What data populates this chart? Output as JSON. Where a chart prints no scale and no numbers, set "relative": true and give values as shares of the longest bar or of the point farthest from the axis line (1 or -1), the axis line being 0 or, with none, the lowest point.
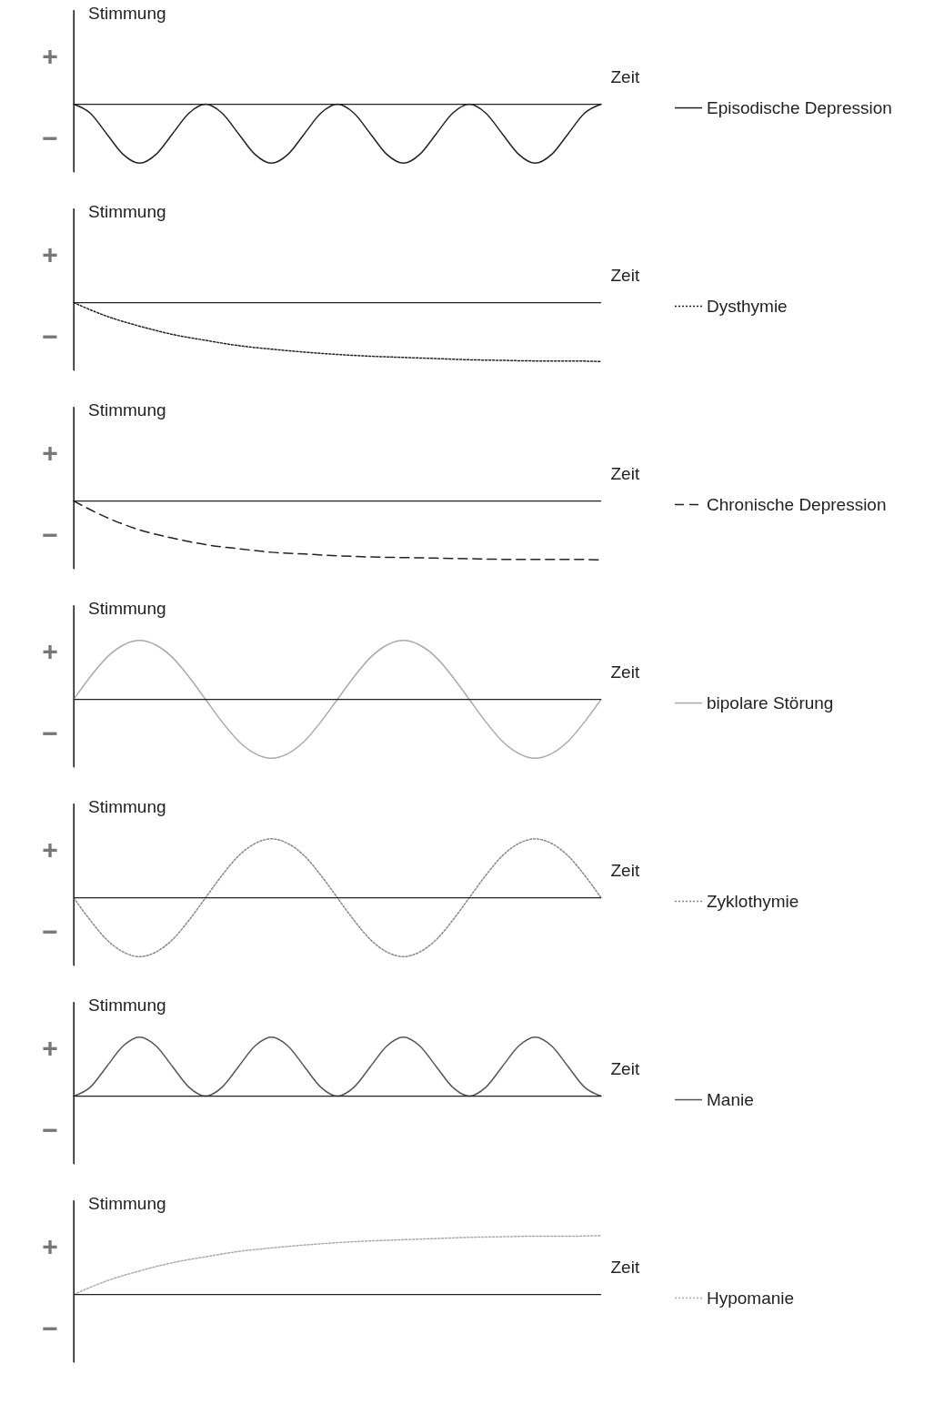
{
  "chart_data": [
    {
      "type": "line",
      "relative": true,
      "xlabel": "Zeit",
      "ylabel": "Stimmung",
      "annotations": [
        "+",
        "−"
      ],
      "legend": "right",
      "line_style": "solid",
      "categories": [
        null,
        null,
        null,
        null,
        null,
        null,
        null,
        null,
        null,
        null,
        null,
        null,
        null,
        null,
        null,
        null,
        null,
        null,
        null,
        null,
        null,
        null,
        null,
        null,
        null,
        null,
        null,
        null,
        null,
        null,
        null,
        null,
        null
      ],
      "series": [
        {
          "name": "Episodische Depression",
          "color": "#222222",
          "values": [
            0,
            -0.15,
            -0.5,
            -0.85,
            -1,
            -0.85,
            -0.5,
            -0.15,
            0,
            -0.15,
            -0.5,
            -0.85,
            -1,
            -0.85,
            -0.5,
            -0.15,
            0,
            -0.15,
            -0.5,
            -0.85,
            -1,
            -0.85,
            -0.5,
            -0.15,
            0,
            -0.15,
            -0.5,
            -0.85,
            -1,
            -0.85,
            -0.5,
            -0.15,
            0
          ]
        }
      ]
    },
    {
      "type": "line",
      "relative": true,
      "xlabel": "Zeit",
      "ylabel": "Stimmung",
      "annotations": [
        "+",
        "−"
      ],
      "legend": "right",
      "line_style": "dotted",
      "categories": [
        null,
        null,
        null,
        null,
        null,
        null,
        null,
        null,
        null,
        null,
        null,
        null,
        null,
        null,
        null,
        null,
        null
      ],
      "series": [
        {
          "name": "Dysthymie",
          "color": "#222222",
          "values": [
            0,
            -0.23,
            -0.4,
            -0.54,
            -0.64,
            -0.73,
            -0.79,
            -0.84,
            -0.88,
            -0.91,
            -0.93,
            -0.95,
            -0.97,
            -0.98,
            -0.99,
            -0.99,
            -1
          ]
        }
      ]
    },
    {
      "type": "line",
      "relative": true,
      "xlabel": "Zeit",
      "ylabel": "Stimmung",
      "annotations": [
        "+",
        "−"
      ],
      "legend": "right",
      "line_style": "dashed",
      "categories": [
        null,
        null,
        null,
        null,
        null,
        null,
        null,
        null,
        null,
        null,
        null,
        null,
        null,
        null,
        null,
        null,
        null
      ],
      "series": [
        {
          "name": "Chronische Depression",
          "color": "#222222",
          "values": [
            0,
            -0.28,
            -0.49,
            -0.63,
            -0.74,
            -0.81,
            -0.87,
            -0.9,
            -0.93,
            -0.95,
            -0.96,
            -0.97,
            -0.98,
            -0.99,
            -0.99,
            -0.99,
            -1
          ]
        }
      ]
    },
    {
      "type": "line",
      "relative": true,
      "xlabel": "Zeit",
      "ylabel": "Stimmung",
      "annotations": [
        "+",
        "−"
      ],
      "legend": "right",
      "line_style": "solid",
      "categories": [
        null,
        null,
        null,
        null,
        null,
        null,
        null,
        null,
        null,
        null,
        null,
        null,
        null,
        null,
        null,
        null,
        null,
        null,
        null,
        null,
        null,
        null,
        null,
        null,
        null,
        null,
        null,
        null,
        null,
        null,
        null,
        null,
        null
      ],
      "series": [
        {
          "name": "bipolare Störung",
          "color": "#aaaaaa",
          "values": [
            0,
            0.38,
            0.71,
            0.92,
            1,
            0.92,
            0.71,
            0.38,
            0,
            -0.38,
            -0.71,
            -0.92,
            -1,
            -0.92,
            -0.71,
            -0.38,
            0,
            0.38,
            0.71,
            0.92,
            1,
            0.92,
            0.71,
            0.38,
            0,
            -0.38,
            -0.71,
            -0.92,
            -1,
            -0.92,
            -0.71,
            -0.38,
            0
          ]
        }
      ]
    },
    {
      "type": "line",
      "relative": true,
      "xlabel": "Zeit",
      "ylabel": "Stimmung",
      "annotations": [
        "+",
        "−"
      ],
      "legend": "right",
      "line_style": "dotted",
      "categories": [
        null,
        null,
        null,
        null,
        null,
        null,
        null,
        null,
        null,
        null,
        null,
        null,
        null,
        null,
        null,
        null,
        null,
        null,
        null,
        null,
        null,
        null,
        null,
        null,
        null,
        null,
        null,
        null,
        null,
        null,
        null,
        null,
        null
      ],
      "series": [
        {
          "name": "Zyklothymie",
          "color": "#888888",
          "values": [
            0,
            -0.38,
            -0.71,
            -0.92,
            -1,
            -0.92,
            -0.71,
            -0.38,
            0,
            0.38,
            0.71,
            0.92,
            1,
            0.92,
            0.71,
            0.38,
            0,
            -0.38,
            -0.71,
            -0.92,
            -1,
            -0.92,
            -0.71,
            -0.38,
            0,
            0.38,
            0.71,
            0.92,
            1,
            0.92,
            0.71,
            0.38,
            0
          ]
        }
      ]
    },
    {
      "type": "line",
      "relative": true,
      "xlabel": "Zeit",
      "ylabel": "Stimmung",
      "annotations": [
        "+",
        "−"
      ],
      "legend": "right",
      "line_style": "solid",
      "categories": [
        null,
        null,
        null,
        null,
        null,
        null,
        null,
        null,
        null,
        null,
        null,
        null,
        null,
        null,
        null,
        null,
        null,
        null,
        null,
        null,
        null,
        null,
        null,
        null,
        null,
        null,
        null,
        null,
        null,
        null,
        null,
        null,
        null
      ],
      "series": [
        {
          "name": "Manie",
          "color": "#555555",
          "values": [
            0,
            0.15,
            0.5,
            0.85,
            1,
            0.85,
            0.5,
            0.15,
            0,
            0.15,
            0.5,
            0.85,
            1,
            0.85,
            0.5,
            0.15,
            0,
            0.15,
            0.5,
            0.85,
            1,
            0.85,
            0.5,
            0.15,
            0,
            0.15,
            0.5,
            0.85,
            1,
            0.85,
            0.5,
            0.15,
            0
          ]
        }
      ]
    },
    {
      "type": "line",
      "relative": true,
      "xlabel": "Zeit",
      "ylabel": "Stimmung",
      "annotations": [
        "+",
        "−"
      ],
      "legend": "right",
      "line_style": "dotted",
      "categories": [
        null,
        null,
        null,
        null,
        null,
        null,
        null,
        null,
        null,
        null,
        null,
        null,
        null,
        null,
        null,
        null,
        null
      ],
      "series": [
        {
          "name": "Hypomanie",
          "color": "#aaaaaa",
          "values": [
            0,
            0.23,
            0.4,
            0.54,
            0.64,
            0.73,
            0.79,
            0.84,
            0.88,
            0.91,
            0.93,
            0.95,
            0.97,
            0.98,
            0.99,
            0.99,
            1
          ]
        }
      ]
    }
  ]
}
